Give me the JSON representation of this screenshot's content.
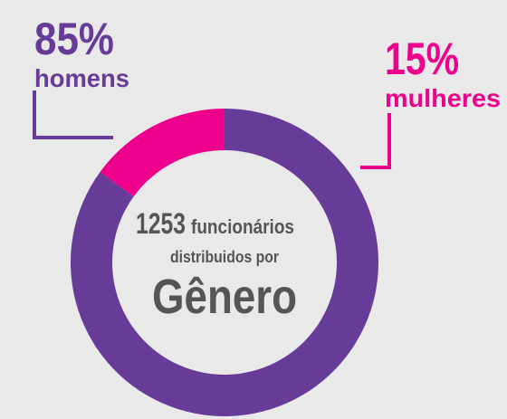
{
  "chart_data": {
    "type": "pie",
    "donut": true,
    "categories": [
      "homens",
      "mulheres"
    ],
    "values": [
      85,
      15
    ],
    "value_labels": [
      "85%",
      "15%"
    ],
    "colors": [
      "#673c98",
      "#ec008c"
    ],
    "center": {
      "count": 1253,
      "count_unit": "funcionários",
      "line2": "distribuidos por",
      "line3": "Gênero"
    }
  }
}
